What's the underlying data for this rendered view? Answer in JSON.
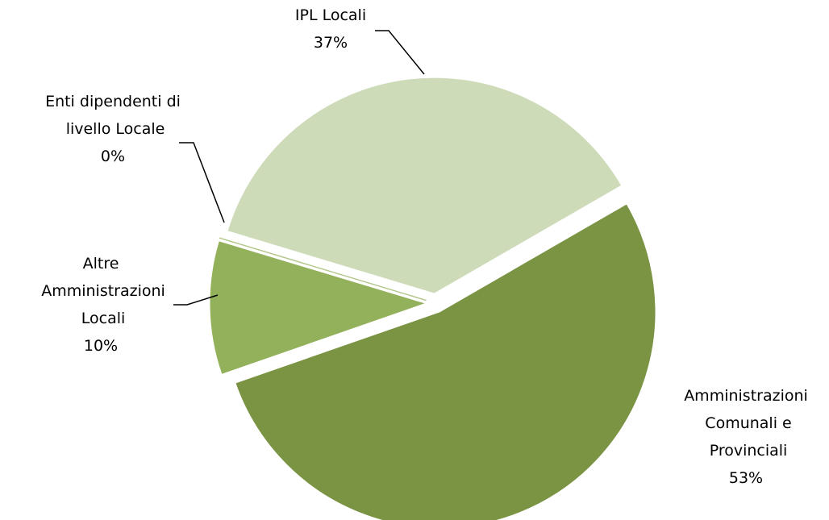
{
  "chart_data": {
    "type": "pie",
    "categories": [
      "Amministrazioni Comunali e Provinciali",
      "Altre Amministrazioni Locali",
      "Enti dipendenti di livello Locale",
      "IPL Locali"
    ],
    "values": [
      53,
      10,
      0,
      37
    ],
    "value_labels": [
      "53%",
      "10%",
      "0%",
      "37%"
    ],
    "colors": [
      "#7a9443",
      "#93b05a",
      "#b4c88c",
      "#cddbb8"
    ]
  }
}
